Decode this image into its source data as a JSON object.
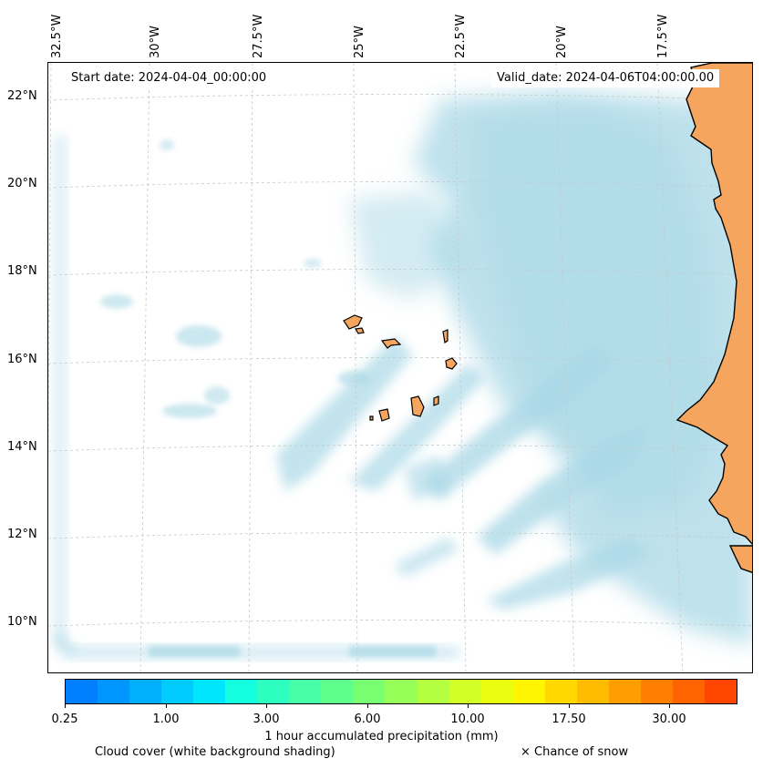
{
  "header": {
    "start_date": "Start date: 2024-04-04_00:00:00",
    "valid_date": "Valid_date: 2024-04-06T04:00:00.00"
  },
  "axes": {
    "longitude_labels": [
      "32.5°W",
      "30°W",
      "27.5°W",
      "25°W",
      "22.5°W",
      "20°W",
      "17.5°W"
    ],
    "latitude_labels": [
      "22°N",
      "20°N",
      "18°N",
      "16°N",
      "14°N",
      "12°N",
      "10°N"
    ]
  },
  "colorbar": {
    "tick_labels": [
      "0.25",
      "1.00",
      "3.00",
      "6.00",
      "10.00",
      "17.50",
      "30.00"
    ],
    "label": "1 hour accumulated precipitation (mm)",
    "colors": [
      "#0080ff",
      "#0096ff",
      "#00b0ff",
      "#00ccff",
      "#00e6ff",
      "#14ffe0",
      "#2dffc0",
      "#46ffa6",
      "#5fff8c",
      "#78ff72",
      "#96ff58",
      "#b4ff40",
      "#d2ff28",
      "#eaff10",
      "#fff500",
      "#ffd800",
      "#ffbc00",
      "#ff9e00",
      "#ff8000",
      "#ff6400",
      "#ff4600"
    ]
  },
  "legend": {
    "cloud": "Cloud cover (white background shading)",
    "snow": "× Chance of snow"
  },
  "colors": {
    "land": "#f5a55e",
    "land_deep": "#f29b52",
    "cloud": "#a9d8e6",
    "grid": "#c8c8c8"
  }
}
